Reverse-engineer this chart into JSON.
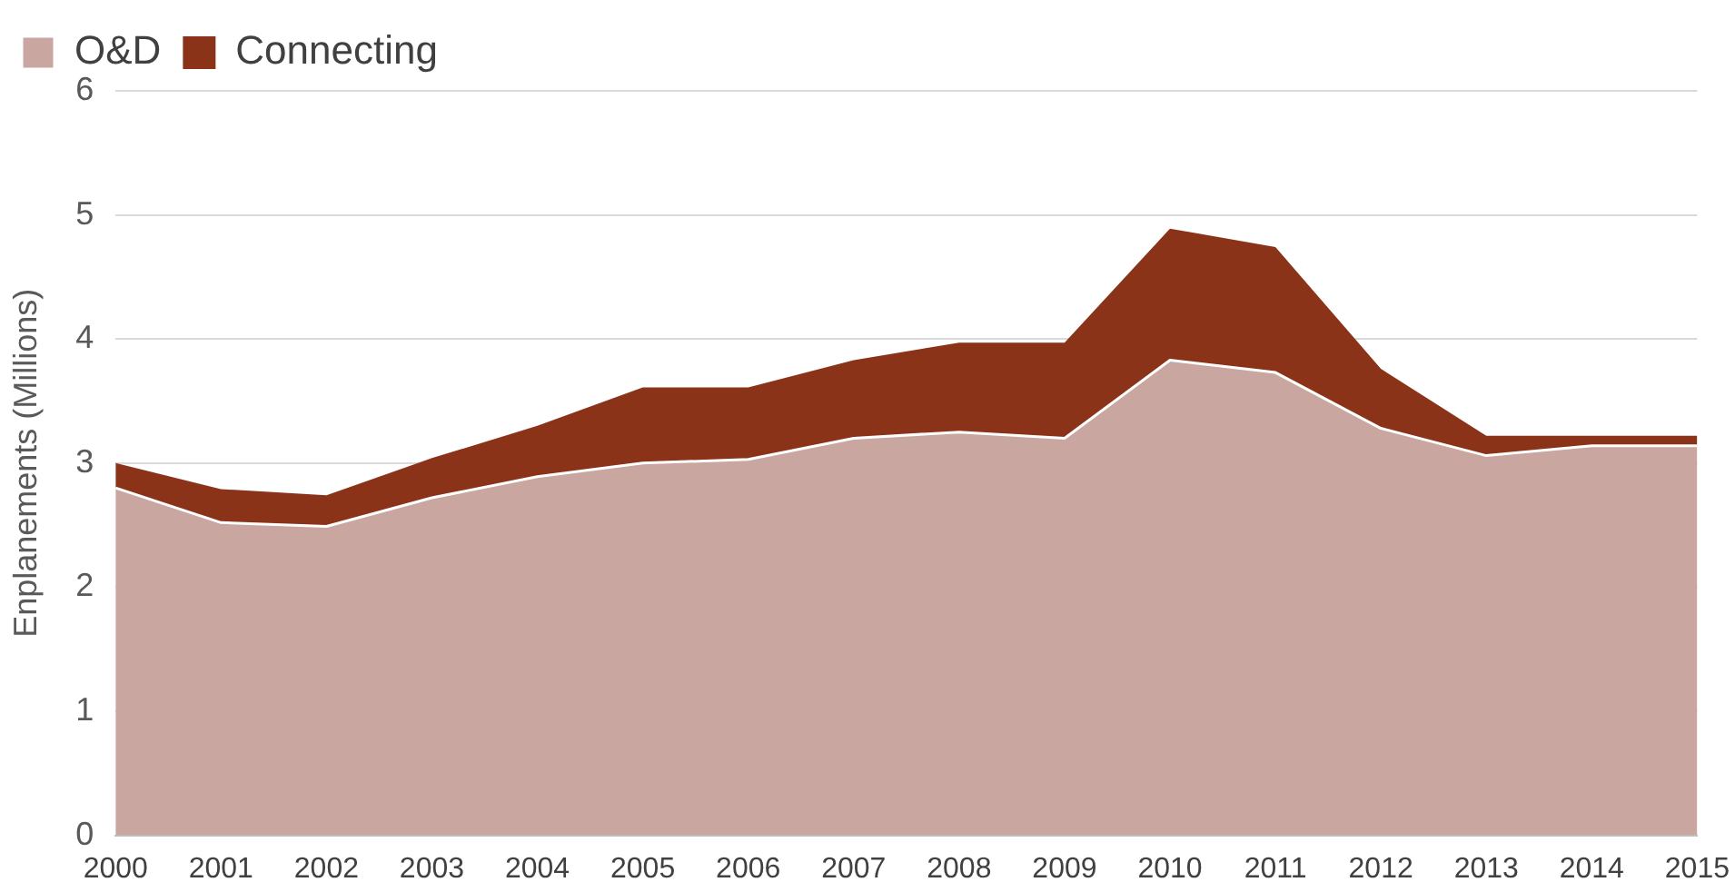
{
  "chart_data": {
    "type": "area",
    "stacked": true,
    "ylabel": "Enplanements (Millions)",
    "categories": [
      "2000",
      "2001",
      "2002",
      "2003",
      "2004",
      "2005",
      "2006",
      "2007",
      "2008",
      "2009",
      "2010",
      "2011",
      "2012",
      "2013",
      "2014",
      "2015"
    ],
    "series": [
      {
        "name": "O&D",
        "color": "#c9a6a0",
        "values": [
          2.8,
          2.52,
          2.49,
          2.72,
          2.89,
          3.0,
          3.03,
          3.2,
          3.25,
          3.2,
          3.83,
          3.73,
          3.28,
          3.06,
          3.14,
          3.14
        ]
      },
      {
        "name": "Connecting",
        "color": "#8b3319",
        "values": [
          0.2,
          0.27,
          0.25,
          0.32,
          0.41,
          0.61,
          0.58,
          0.63,
          0.72,
          0.77,
          1.06,
          1.01,
          0.48,
          0.16,
          0.08,
          0.08
        ]
      }
    ],
    "ylim": [
      0,
      6
    ],
    "yticks": [
      0,
      1,
      2,
      3,
      4,
      5,
      6
    ],
    "grid": "y",
    "legend": "top left"
  }
}
